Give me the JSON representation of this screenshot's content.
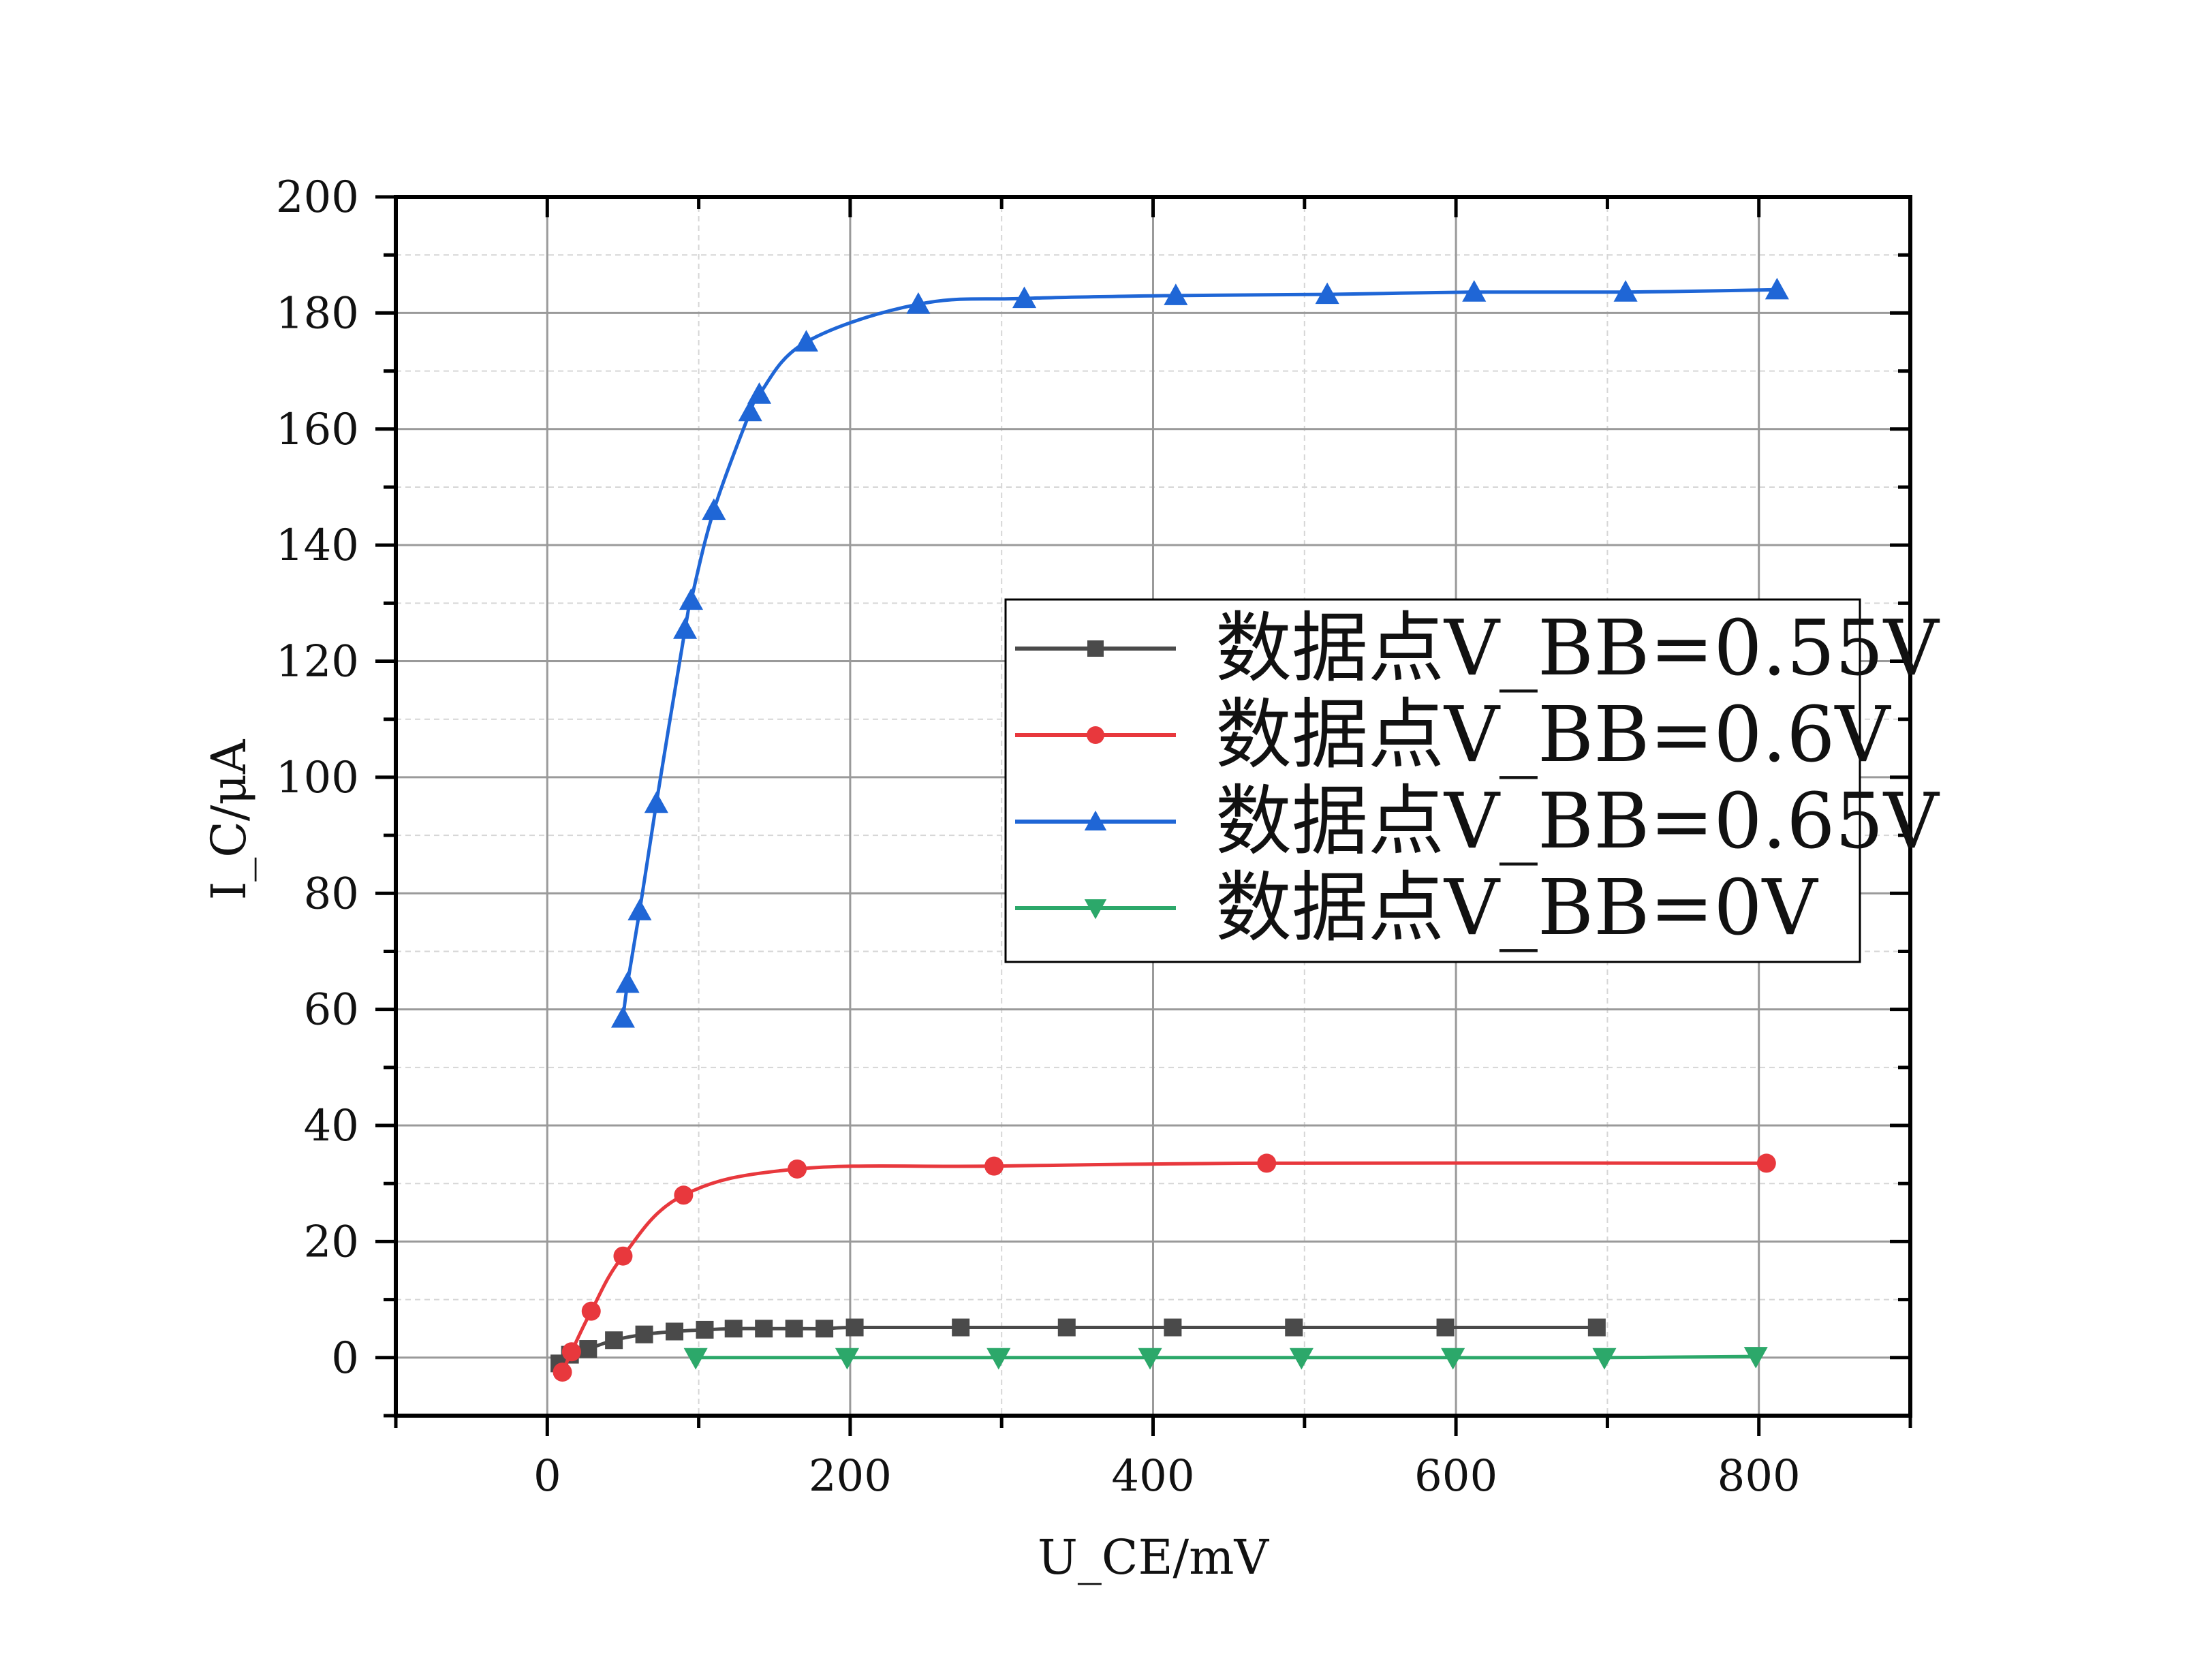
{
  "chart_data": {
    "type": "line",
    "title": "",
    "xlabel": "U_CE/mV",
    "ylabel": "I_C/μA",
    "xlim": [
      -100,
      900
    ],
    "ylim": [
      -10,
      200
    ],
    "xticks": [
      "0",
      "200",
      "400",
      "600",
      "800"
    ],
    "yticks": [
      "0",
      "20",
      "40",
      "60",
      "80",
      "100",
      "120",
      "140",
      "160",
      "180",
      "200"
    ],
    "grid": true,
    "legend_position": "center-right",
    "series": [
      {
        "name": "数据点V_BB=0.55V",
        "color": "#4a4a4a",
        "marker": "square",
        "x": [
          8,
          15,
          27,
          44,
          64,
          84,
          104,
          123,
          143,
          163,
          183,
          203,
          273,
          343,
          413,
          493,
          593,
          693
        ],
        "y": [
          -1,
          0.5,
          1.5,
          3,
          4,
          4.5,
          4.8,
          5,
          5,
          5,
          5,
          5.2,
          5.2,
          5.2,
          5.2,
          5.2,
          5.2,
          5.2
        ]
      },
      {
        "name": "数据点V_BB=0.6V",
        "color": "#e8383d",
        "marker": "circle",
        "x": [
          10,
          16,
          29,
          50,
          90,
          165,
          295,
          475,
          805
        ],
        "y": [
          -2.5,
          1,
          8,
          17.5,
          28,
          32.5,
          33,
          33.5,
          33.5
        ]
      },
      {
        "name": "数据点V_BB=0.65V",
        "color": "#1f66d6",
        "marker": "triangle-up",
        "x": [
          50,
          53,
          61,
          72,
          91,
          95,
          110,
          134,
          140,
          171,
          245,
          315,
          415,
          515,
          612,
          712,
          812
        ],
        "y": [
          58.5,
          64.5,
          77,
          95.5,
          125.5,
          130.5,
          146,
          163,
          166,
          175,
          181.5,
          182.5,
          183,
          183.2,
          183.6,
          183.6,
          184
        ]
      },
      {
        "name": "数据点V_BB=0V",
        "color": "#2ca86a",
        "marker": "triangle-down",
        "x": [
          98,
          198,
          298,
          398,
          498,
          598,
          698,
          798
        ],
        "y": [
          0,
          0,
          0,
          0,
          0,
          0,
          0,
          0.2
        ]
      }
    ]
  }
}
